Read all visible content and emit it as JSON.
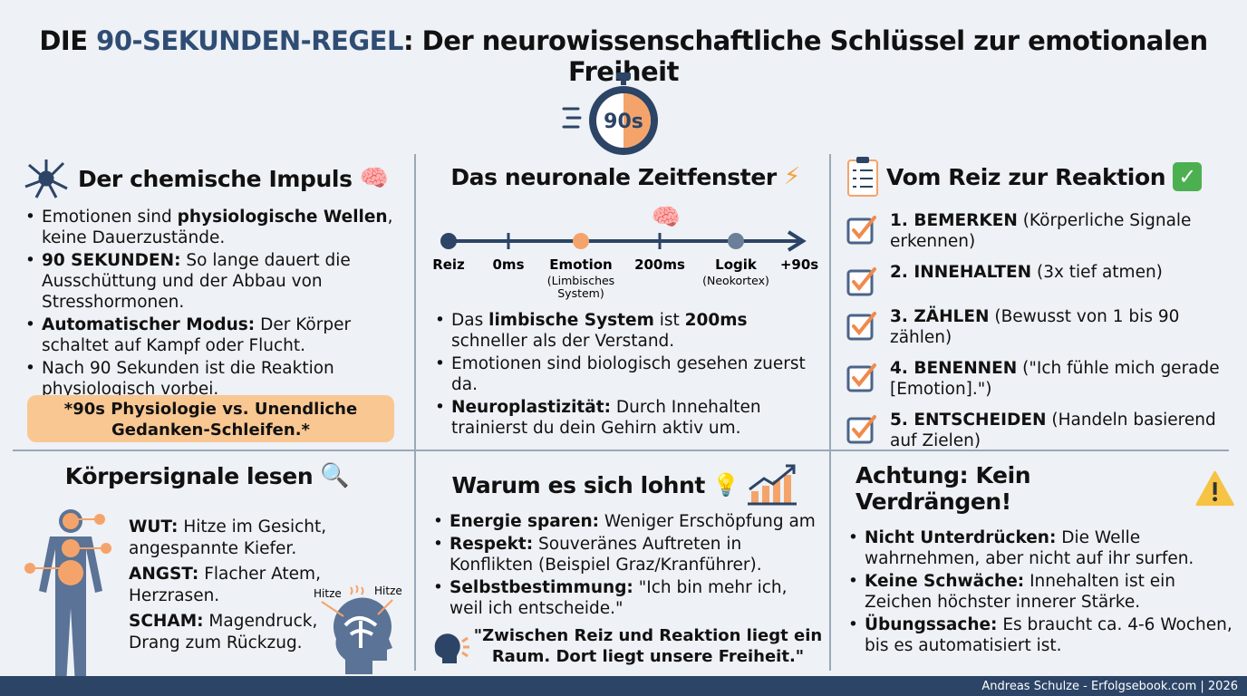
{
  "title": {
    "accent": "DIE ",
    "highlight": "90-SEKUNDEN-REGEL",
    "rest": ": Der neurowissenschaftliche Schlüssel zur emotionalen Freiheit"
  },
  "stopwatch": {
    "label": "90s"
  },
  "colors": {
    "navy": "#2c4466",
    "orange": "#f4a46a",
    "note": "#f9c792"
  },
  "panel1": {
    "heading": "Der chemische Impuls",
    "bullets": [
      {
        "bold": "",
        "pre": "Emotionen sind ",
        "b": "physiologische Wellen",
        "post": ", keine Dauerzustände."
      },
      {
        "pre": "",
        "b": "90 SEKUNDEN:",
        "post": " So lange dauert die Ausschüttung und der Abbau von Stresshormonen."
      },
      {
        "pre": "",
        "b": "Automatischer Modus:",
        "post": " Der Körper schaltet auf Kampf oder Flucht."
      },
      {
        "pre": "Nach 90 Sekunden ist die Reaktion physiologisch vorbei.",
        "b": "",
        "post": ""
      }
    ],
    "note": "*90s Physiologie vs. Unendliche Gedanken-Schleifen.*"
  },
  "panel2": {
    "heading": "Das neuronale Zeitfenster",
    "timeline": [
      {
        "label": "Reiz",
        "sub": ""
      },
      {
        "label": "0ms",
        "sub": ""
      },
      {
        "label": "Emotion",
        "sub": "(Limbisches System)"
      },
      {
        "label": "200ms",
        "sub": ""
      },
      {
        "label": "Logik",
        "sub": "(Neokortex)"
      },
      {
        "label": "+90s",
        "sub": ""
      }
    ],
    "bullets": [
      {
        "pre": "Das ",
        "b": "limbische System",
        "mid": " ist ",
        "b2": "200ms",
        "post": " schneller als der Verstand."
      },
      {
        "pre": "Emotionen sind biologisch gesehen zuerst da.",
        "b": "",
        "mid": "",
        "b2": "",
        "post": ""
      },
      {
        "pre": "",
        "b": "Neuroplastizität:",
        "mid": " Durch Innehalten trainierst du dein Gehirn aktiv um.",
        "b2": "",
        "post": ""
      }
    ]
  },
  "panel3": {
    "heading": "Vom Reiz zur Reaktion",
    "steps": [
      {
        "b": "1. BEMERKEN",
        "t": " (Körperliche Signale erkennen)"
      },
      {
        "b": "2. INNEHALTEN",
        "t": " (3x tief atmen)"
      },
      {
        "b": "3. ZÄHLEN",
        "t": " (Bewusst von 1 bis 90 zählen)"
      },
      {
        "b": "4. BENENNEN",
        "t": " (\"Ich fühle mich gerade [Emotion].\")"
      },
      {
        "b": "5. ENTSCHEIDEN",
        "t": " (Handeln basierend auf Zielen)"
      }
    ]
  },
  "panel4": {
    "heading": "Körpersignale lesen",
    "signals": [
      {
        "b": "WUT:",
        "t": " Hitze im Gesicht, angespannte Kiefer."
      },
      {
        "b": "ANGST:",
        "t": " Flacher Atem, Herzrasen."
      },
      {
        "b": "SCHAM:",
        "t": " Magendruck, Drang zum Rückzug."
      }
    ],
    "head_labels": [
      "Hitze",
      "Hitze"
    ]
  },
  "panel5": {
    "heading": "Warum es sich lohnt",
    "bullets": [
      {
        "b": "Energie sparen:",
        "t": " Weniger Erschöpfung am"
      },
      {
        "b": "Respekt:",
        "t": " Souveränes Auftreten in Konflikten (Beispiel Graz/Kranführer)."
      },
      {
        "b": "Selbstbestimmung:",
        "t": " \"Ich bin mehr ich, weil ich entscheide.\""
      }
    ],
    "quote": "\"Zwischen Reiz und Reaktion liegt ein Raum. Dort liegt unsere Freiheit.\""
  },
  "panel6": {
    "heading": "Achtung: Kein Verdrängen!",
    "bullets": [
      {
        "b": "Nicht Unterdrücken:",
        "t": " Die Welle wahrnehmen, aber nicht auf ihr surfen."
      },
      {
        "b": "Keine Schwäche:",
        "t": " Innehalten ist ein Zeichen höchster innerer Stärke."
      },
      {
        "b": "Übungssache:",
        "t": " Es braucht ca. 4-6 Wochen, bis es automatisiert ist."
      }
    ]
  },
  "footer": "Andreas Schulze - Erfolgsebook.com | 2026"
}
